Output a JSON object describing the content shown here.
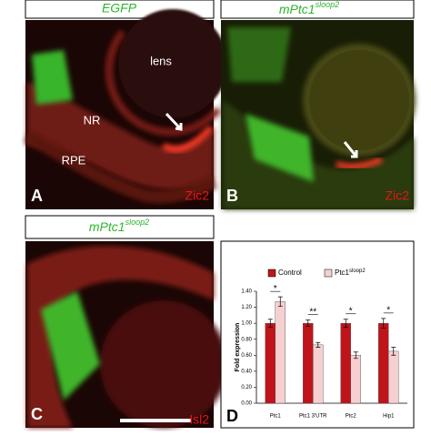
{
  "header_a": "EGFP",
  "header_b": {
    "text": "mPtc1",
    "superscript": "sloop2"
  },
  "header_c": {
    "text": "mPtc1",
    "superscript": "sloop2"
  },
  "panel_a": {
    "letter": "A",
    "marker": "Zic2",
    "labels": [
      "lens",
      "NR",
      "RPE"
    ]
  },
  "panel_b": {
    "letter": "B",
    "marker": "Zic2"
  },
  "panel_c": {
    "letter": "C",
    "marker": "Isl2"
  },
  "panel_d": {
    "letter": "D"
  },
  "chart_data": {
    "type": "bar",
    "y_label": "Fold expression",
    "categories": [
      "Ptc1",
      "Ptc1 3'UTR",
      "Ptc2",
      "Hip1"
    ],
    "series": [
      {
        "name": "Control",
        "color": "#c0141b",
        "values": [
          1.0,
          1.0,
          1.0,
          1.0
        ],
        "errors": [
          0.05,
          0.04,
          0.05,
          0.06
        ]
      },
      {
        "name": "Ptc1",
        "name_superscript": "sloop2",
        "color": "#f6d0d0",
        "values": [
          1.27,
          0.73,
          0.6,
          0.65
        ],
        "errors": [
          0.06,
          0.03,
          0.04,
          0.05
        ]
      }
    ],
    "significance": [
      "*",
      "**",
      "*",
      "*"
    ],
    "ylim": [
      0,
      1.4
    ],
    "yticks": [
      {
        "value": 0,
        "label": "0.00"
      },
      {
        "value": 0.2,
        "label": "0.20"
      },
      {
        "value": 0.4,
        "label": "0.40"
      },
      {
        "value": 0.6,
        "label": "0.60"
      },
      {
        "value": 0.8,
        "label": "0.80"
      },
      {
        "value": 1.0,
        "label": "1.00"
      },
      {
        "value": 1.2,
        "label": "1.20"
      },
      {
        "value": 1.4,
        "label": "1.40"
      }
    ]
  }
}
